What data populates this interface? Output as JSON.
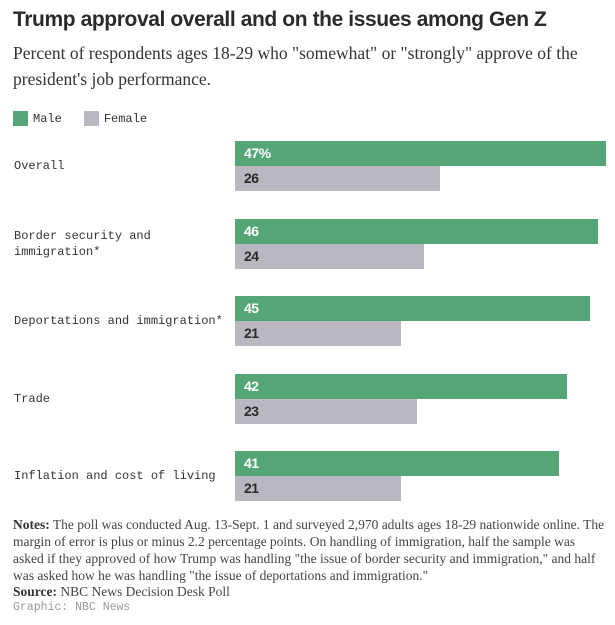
{
  "chart_data": {
    "type": "bar",
    "orientation": "horizontal",
    "title": "Trump approval overall and on the issues among Gen Z",
    "subtitle": "Percent of respondents ages 18-29 who \"somewhat\" or \"strongly\" approve of the president's job performance.",
    "categories": [
      "Overall",
      "Border security and immigration*",
      "Deportations and immigration*",
      "Trade",
      "Inflation and cost of living"
    ],
    "series": [
      {
        "name": "Male",
        "color": "#55a677",
        "values": [
          47,
          46,
          45,
          42,
          41
        ],
        "labels": [
          "47%",
          "46",
          "45",
          "42",
          "41"
        ]
      },
      {
        "name": "Female",
        "color": "#b7b8c0",
        "values": [
          26,
          24,
          21,
          23,
          21
        ],
        "labels": [
          "26",
          "24",
          "21",
          "23",
          "21"
        ]
      }
    ],
    "xlim": [
      0,
      47
    ],
    "legend_position": "top-left",
    "grid": false
  },
  "notes_label": "Notes:",
  "notes": " The poll was conducted Aug. 13-Sept. 1 and surveyed 2,970 adults ages 18-29 nationwide online. The margin of error is plus or minus 2.2 percentage points. On handling of immigration, half the sample was asked if they approved of how Trump was handling \"the issue of border security and immigration,\" and half was asked how he was handling \"the issue of deportations and immigration.\"",
  "source_label": "Source:",
  "source": " NBC News Decision Desk Poll",
  "credit": "Graphic: NBC News"
}
